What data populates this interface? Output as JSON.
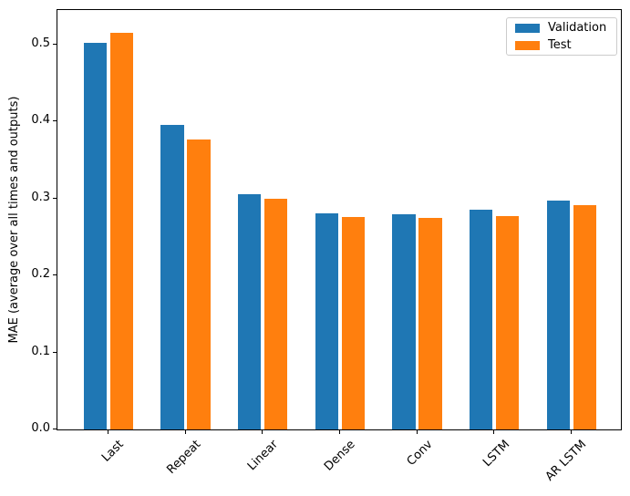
{
  "chart_data": {
    "type": "bar",
    "title": "",
    "xlabel": "",
    "ylabel": "MAE (average over all times and outputs)",
    "categories": [
      "Last",
      "Repeat",
      "Linear",
      "Dense",
      "Conv",
      "LSTM",
      "AR LSTM"
    ],
    "series": [
      {
        "name": "Validation",
        "color": "#1f77b4",
        "values": [
          0.502,
          0.396,
          0.306,
          0.281,
          0.28,
          0.286,
          0.298
        ]
      },
      {
        "name": "Test",
        "color": "#ff7f0e",
        "values": [
          0.515,
          0.377,
          0.3,
          0.276,
          0.275,
          0.277,
          0.292
        ]
      }
    ],
    "ylim": [
      0,
      0.545
    ],
    "xlim": [
      -0.66,
      6.64
    ],
    "yticks": [
      0.0,
      0.1,
      0.2,
      0.3,
      0.4,
      0.5
    ],
    "ytick_labels": [
      "0.0",
      "0.1",
      "0.2",
      "0.3",
      "0.4",
      "0.5"
    ],
    "grid": false,
    "legend_position": "upper right",
    "bar_width": 0.3,
    "bar_offset": 0.17,
    "xtick_rotation_deg": 45
  }
}
